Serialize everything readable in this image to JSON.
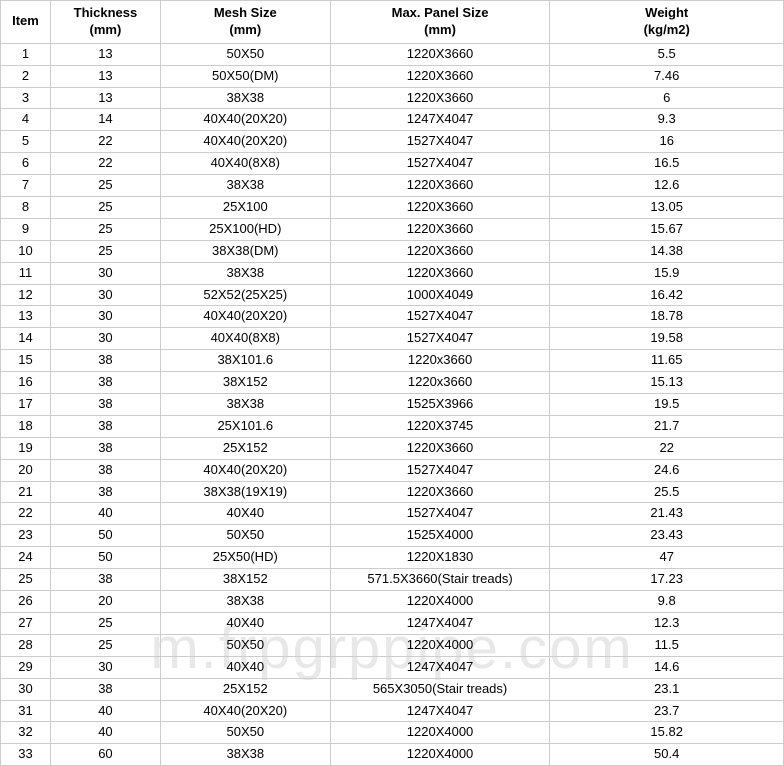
{
  "table": {
    "columns": [
      {
        "line1": "Item",
        "line2": ""
      },
      {
        "line1": "Thickness",
        "line2": "(mm)"
      },
      {
        "line1": "Mesh Size",
        "line2": "(mm)"
      },
      {
        "line1": "Max. Panel Size",
        "line2": "(mm)"
      },
      {
        "line1": "Weight",
        "line2": "(kg/m2)"
      }
    ],
    "rows": [
      [
        "1",
        "13",
        "50X50",
        "1220X3660",
        "5.5"
      ],
      [
        "2",
        "13",
        "50X50(DM)",
        "1220X3660",
        "7.46"
      ],
      [
        "3",
        "13",
        "38X38",
        "1220X3660",
        "6"
      ],
      [
        "4",
        "14",
        "40X40(20X20)",
        "1247X4047",
        "9.3"
      ],
      [
        "5",
        "22",
        "40X40(20X20)",
        "1527X4047",
        "16"
      ],
      [
        "6",
        "22",
        "40X40(8X8)",
        "1527X4047",
        "16.5"
      ],
      [
        "7",
        "25",
        "38X38",
        "1220X3660",
        "12.6"
      ],
      [
        "8",
        "25",
        "25X100",
        "1220X3660",
        "13.05"
      ],
      [
        "9",
        "25",
        "25X100(HD)",
        "1220X3660",
        "15.67"
      ],
      [
        "10",
        "25",
        "38X38(DM)",
        "1220X3660",
        "14.38"
      ],
      [
        "11",
        "30",
        "38X38",
        "1220X3660",
        "15.9"
      ],
      [
        "12",
        "30",
        "52X52(25X25)",
        "1000X4049",
        "16.42"
      ],
      [
        "13",
        "30",
        "40X40(20X20)",
        "1527X4047",
        "18.78"
      ],
      [
        "14",
        "30",
        "40X40(8X8)",
        "1527X4047",
        "19.58"
      ],
      [
        "15",
        "38",
        "38X101.6",
        "1220x3660",
        "11.65"
      ],
      [
        "16",
        "38",
        "38X152",
        "1220x3660",
        "15.13"
      ],
      [
        "17",
        "38",
        "38X38",
        "1525X3966",
        "19.5"
      ],
      [
        "18",
        "38",
        "25X101.6",
        "1220X3745",
        "21.7"
      ],
      [
        "19",
        "38",
        "25X152",
        "1220X3660",
        "22"
      ],
      [
        "20",
        "38",
        "40X40(20X20)",
        "1527X4047",
        "24.6"
      ],
      [
        "21",
        "38",
        "38X38(19X19)",
        "1220X3660",
        "25.5"
      ],
      [
        "22",
        "40",
        "40X40",
        "1527X4047",
        "21.43"
      ],
      [
        "23",
        "50",
        "50X50",
        "1525X4000",
        "23.43"
      ],
      [
        "24",
        "50",
        "25X50(HD)",
        "1220X1830",
        "47"
      ],
      [
        "25",
        "38",
        "38X152",
        "571.5X3660(Stair treads)",
        "17.23"
      ],
      [
        "26",
        "20",
        "38X38",
        "1220X4000",
        "9.8"
      ],
      [
        "27",
        "25",
        "40X40",
        "1247X4047",
        "12.3"
      ],
      [
        "28",
        "25",
        "50X50",
        "1220X4000",
        "11.5"
      ],
      [
        "29",
        "30",
        "40X40",
        "1247X4047",
        "14.6"
      ],
      [
        "30",
        "38",
        "25X152",
        "565X3050(Stair treads)",
        "23.1"
      ],
      [
        "31",
        "40",
        "40X40(20X20)",
        "1247X4047",
        "23.7"
      ],
      [
        "32",
        "40",
        "50X50",
        "1220X4000",
        "15.82"
      ],
      [
        "33",
        "60",
        "38X38",
        "1220X4000",
        "50.4"
      ]
    ],
    "border_color": "#cccccc",
    "background_color": "#ffffff",
    "text_color": "#000000",
    "font_size": 13,
    "header_font_weight": "bold"
  },
  "watermark": {
    "text": "m.frpgrppipe.com",
    "color": "#e8e8e8",
    "font_size": 58
  }
}
